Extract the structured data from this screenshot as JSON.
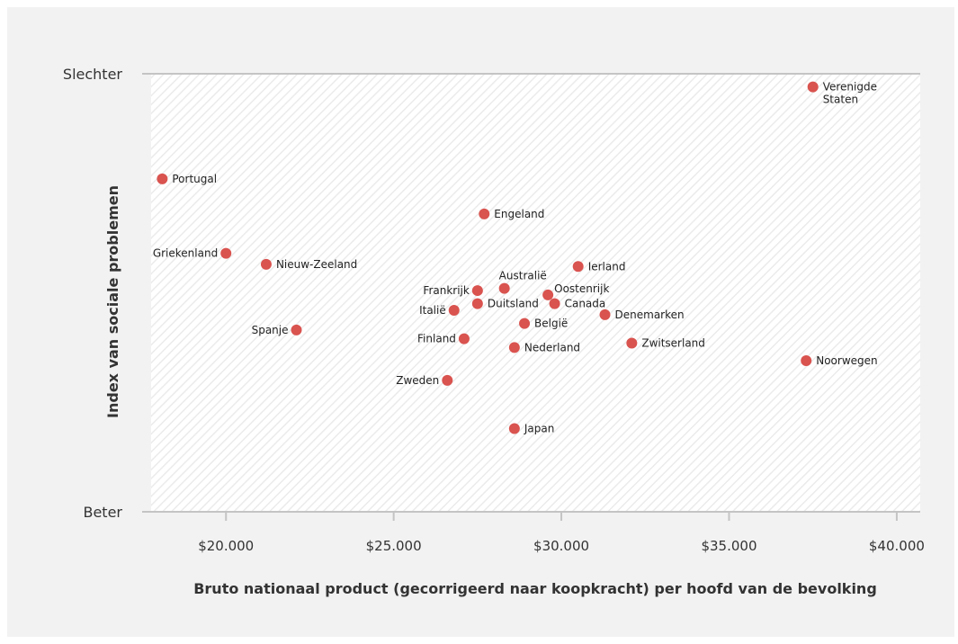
{
  "chart_data": {
    "type": "scatter",
    "title": "",
    "xlabel": "Bruto nationaal product (gecorrigeerd naar koopkracht) per hoofd van de bevolking",
    "ylabel": "Index van sociale problemen",
    "xlim": [
      17500,
      40700
    ],
    "ylim": [
      0,
      100
    ],
    "x_ticks": [
      20000,
      25000,
      30000,
      35000,
      40000
    ],
    "x_tick_labels": [
      "$20.000",
      "$25.000",
      "$30.000",
      "$35.000",
      "$40.000"
    ],
    "y_top_label": "Slechter",
    "y_bottom_label": "Beter",
    "grid": false,
    "marker_color": "#d9534f",
    "points": [
      {
        "label": [
          "Verenigde",
          "Staten"
        ],
        "x": 37500,
        "y": 97,
        "anchor": "right"
      },
      {
        "label": [
          "Portugal"
        ],
        "x": 18100,
        "y": 76,
        "anchor": "right"
      },
      {
        "label": [
          "Engeland"
        ],
        "x": 27700,
        "y": 68,
        "anchor": "right"
      },
      {
        "label": [
          "Griekenland"
        ],
        "x": 20000,
        "y": 59,
        "anchor": "left"
      },
      {
        "label": [
          "Nieuw-Zeeland"
        ],
        "x": 21200,
        "y": 56.5,
        "anchor": "right"
      },
      {
        "label": [
          "Australië"
        ],
        "x": 28300,
        "y": 51,
        "anchor": "top"
      },
      {
        "label": [
          "Ierland"
        ],
        "x": 30500,
        "y": 56,
        "anchor": "right"
      },
      {
        "label": [
          "Frankrijk"
        ],
        "x": 27500,
        "y": 50.5,
        "anchor": "left"
      },
      {
        "label": [
          "Oostenrijk"
        ],
        "x": 29600,
        "y": 49.5,
        "anchor": "right-up"
      },
      {
        "label": [
          "Duitsland"
        ],
        "x": 27500,
        "y": 47.5,
        "anchor": "right"
      },
      {
        "label": [
          "Canada"
        ],
        "x": 29800,
        "y": 47.5,
        "anchor": "right"
      },
      {
        "label": [
          "Italië"
        ],
        "x": 26800,
        "y": 46,
        "anchor": "left"
      },
      {
        "label": [
          "Denemarken"
        ],
        "x": 31300,
        "y": 45,
        "anchor": "right"
      },
      {
        "label": [
          "België"
        ],
        "x": 28900,
        "y": 43,
        "anchor": "right"
      },
      {
        "label": [
          "Spanje"
        ],
        "x": 22100,
        "y": 41.5,
        "anchor": "left"
      },
      {
        "label": [
          "Finland"
        ],
        "x": 27100,
        "y": 39.5,
        "anchor": "left"
      },
      {
        "label": [
          "Nederland"
        ],
        "x": 28600,
        "y": 37.5,
        "anchor": "right"
      },
      {
        "label": [
          "Zwitserland"
        ],
        "x": 32100,
        "y": 38.5,
        "anchor": "right"
      },
      {
        "label": [
          "Noorwegen"
        ],
        "x": 37300,
        "y": 34.5,
        "anchor": "right"
      },
      {
        "label": [
          "Zweden"
        ],
        "x": 26600,
        "y": 30,
        "anchor": "left"
      },
      {
        "label": [
          "Japan"
        ],
        "x": 28600,
        "y": 19,
        "anchor": "right"
      }
    ]
  }
}
